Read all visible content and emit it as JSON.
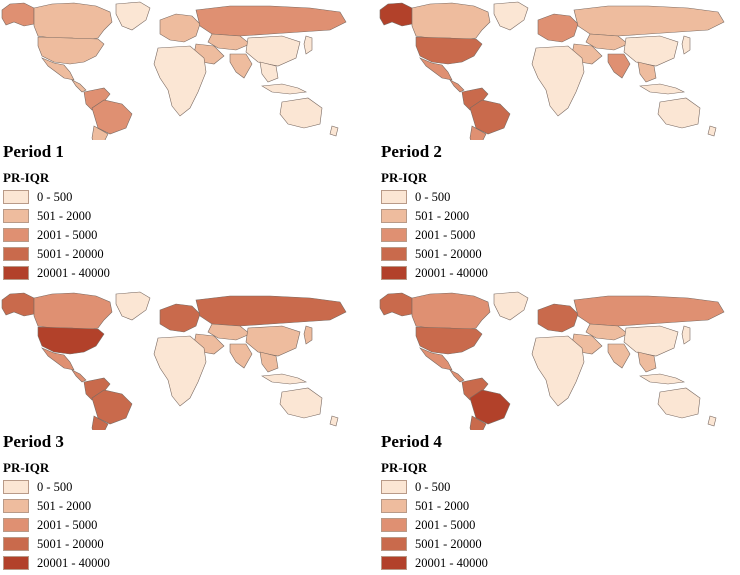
{
  "legend": {
    "title": "PR-IQR",
    "classes": [
      {
        "label": "0 - 500",
        "color": "#fbe6d4"
      },
      {
        "label": "501 - 2000",
        "color": "#eebc9e"
      },
      {
        "label": "2001 - 5000",
        "color": "#df9072"
      },
      {
        "label": "5001 - 20000",
        "color": "#c96a4c"
      },
      {
        "label": "20001 - 40000",
        "color": "#b2412a"
      }
    ]
  },
  "panels": [
    {
      "title": "Period 1",
      "regions": {
        "alaska": 2,
        "canada": 1,
        "usa": 1,
        "mexico": 1,
        "centralam": 1,
        "northsa": 2,
        "brazil": 2,
        "southsa": 1,
        "greenland": 0,
        "europe": 1,
        "russia": 2,
        "centralasia": 1,
        "china": 0,
        "mideast": 1,
        "india": 1,
        "seasia": 0,
        "japan": 0,
        "indonesia": 0,
        "africa": 0,
        "australia": 0,
        "nz": 0
      }
    },
    {
      "title": "Period 2",
      "regions": {
        "alaska": 4,
        "canada": 1,
        "usa": 3,
        "mexico": 2,
        "centralam": 2,
        "northsa": 3,
        "brazil": 3,
        "southsa": 2,
        "greenland": 0,
        "europe": 2,
        "russia": 1,
        "centralasia": 1,
        "china": 0,
        "mideast": 1,
        "india": 2,
        "seasia": 1,
        "japan": 0,
        "indonesia": 0,
        "africa": 0,
        "australia": 0,
        "nz": 0
      }
    },
    {
      "title": "Period 3",
      "regions": {
        "alaska": 3,
        "canada": 2,
        "usa": 4,
        "mexico": 2,
        "centralam": 2,
        "northsa": 3,
        "brazil": 3,
        "southsa": 3,
        "greenland": 0,
        "europe": 3,
        "russia": 3,
        "centralasia": 1,
        "china": 1,
        "mideast": 1,
        "india": 1,
        "seasia": 1,
        "japan": 1,
        "indonesia": 0,
        "africa": 0,
        "australia": 0,
        "nz": 0
      }
    },
    {
      "title": "Period 4",
      "regions": {
        "alaska": 3,
        "canada": 2,
        "usa": 3,
        "mexico": 2,
        "centralam": 2,
        "northsa": 3,
        "brazil": 4,
        "southsa": 3,
        "greenland": 0,
        "europe": 3,
        "russia": 2,
        "centralasia": 1,
        "china": 0,
        "mideast": 1,
        "india": 1,
        "seasia": 1,
        "japan": 0,
        "indonesia": 0,
        "africa": 0,
        "australia": 0,
        "nz": 0
      }
    }
  ]
}
